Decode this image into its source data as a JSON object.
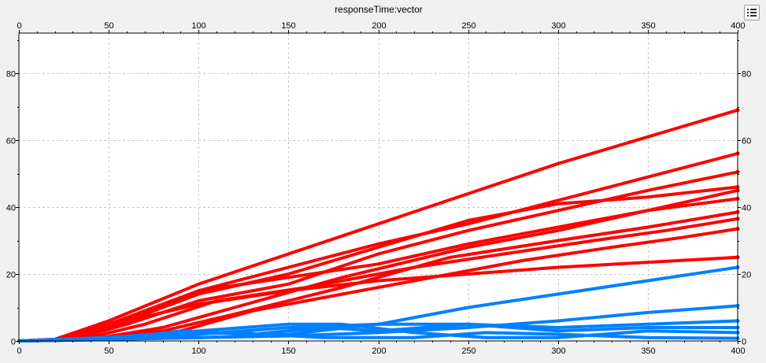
{
  "chart_data": {
    "type": "line",
    "title": "responseTime:vector",
    "xlabel": "",
    "ylabel": "",
    "xlim": [
      0,
      400
    ],
    "ylim": [
      0,
      92
    ],
    "x_ticks": [
      0,
      50,
      100,
      150,
      200,
      250,
      300,
      350,
      400
    ],
    "y_ticks": [
      0,
      20,
      40,
      60,
      80
    ],
    "grid": true,
    "legend": "none",
    "series": [
      {
        "color": "#ff0000",
        "points": [
          [
            0,
            0
          ],
          [
            20,
            0.5
          ],
          [
            50,
            6
          ],
          [
            100,
            17
          ],
          [
            150,
            26
          ],
          [
            200,
            35
          ],
          [
            250,
            44
          ],
          [
            300,
            53
          ],
          [
            350,
            61
          ],
          [
            400,
            69
          ]
        ]
      },
      {
        "color": "#ff0000",
        "points": [
          [
            0,
            0
          ],
          [
            20,
            0.5
          ],
          [
            50,
            5
          ],
          [
            100,
            15
          ],
          [
            150,
            22
          ],
          [
            200,
            29
          ],
          [
            250,
            35
          ],
          [
            300,
            42
          ],
          [
            350,
            49
          ],
          [
            400,
            56
          ]
        ]
      },
      {
        "color": "#ff0000",
        "points": [
          [
            0,
            0
          ],
          [
            30,
            0.5
          ],
          [
            60,
            5
          ],
          [
            100,
            12
          ],
          [
            150,
            17
          ],
          [
            200,
            26
          ],
          [
            250,
            33
          ],
          [
            300,
            39
          ],
          [
            350,
            45
          ],
          [
            400,
            50.5
          ]
        ]
      },
      {
        "color": "#ff0000",
        "points": [
          [
            0,
            0
          ],
          [
            25,
            0.5
          ],
          [
            50,
            4
          ],
          [
            100,
            14
          ],
          [
            150,
            20
          ],
          [
            200,
            28
          ],
          [
            250,
            36
          ],
          [
            300,
            41
          ],
          [
            350,
            43
          ],
          [
            400,
            46
          ]
        ]
      },
      {
        "color": "#ff0000",
        "points": [
          [
            0,
            0
          ],
          [
            40,
            0.5
          ],
          [
            80,
            4
          ],
          [
            120,
            10
          ],
          [
            180,
            19
          ],
          [
            250,
            28
          ],
          [
            300,
            33
          ],
          [
            350,
            39
          ],
          [
            400,
            45
          ]
        ]
      },
      {
        "color": "#ff0000",
        "points": [
          [
            0,
            0
          ],
          [
            30,
            0.5
          ],
          [
            60,
            6
          ],
          [
            100,
            15
          ],
          [
            150,
            19
          ],
          [
            200,
            23
          ],
          [
            250,
            29
          ],
          [
            300,
            34
          ],
          [
            350,
            39
          ],
          [
            400,
            42.5
          ]
        ]
      },
      {
        "color": "#ff0000",
        "points": [
          [
            0,
            0
          ],
          [
            45,
            0.5
          ],
          [
            80,
            3
          ],
          [
            120,
            8
          ],
          [
            180,
            16
          ],
          [
            240,
            25
          ],
          [
            300,
            30
          ],
          [
            350,
            34
          ],
          [
            400,
            38.5
          ]
        ]
      },
      {
        "color": "#ff0000",
        "points": [
          [
            0,
            0
          ],
          [
            35,
            0.5
          ],
          [
            70,
            5
          ],
          [
            110,
            12
          ],
          [
            160,
            16
          ],
          [
            220,
            22
          ],
          [
            270,
            26
          ],
          [
            320,
            30
          ],
          [
            360,
            33
          ],
          [
            400,
            36.5
          ]
        ]
      },
      {
        "color": "#ff0000",
        "points": [
          [
            0,
            0
          ],
          [
            50,
            0.5
          ],
          [
            90,
            3
          ],
          [
            130,
            9
          ],
          [
            180,
            14
          ],
          [
            230,
            19
          ],
          [
            280,
            24
          ],
          [
            330,
            28
          ],
          [
            370,
            31
          ],
          [
            400,
            33.5
          ]
        ]
      },
      {
        "color": "#ff0000",
        "points": [
          [
            0,
            0
          ],
          [
            25,
            0.5
          ],
          [
            60,
            6
          ],
          [
            100,
            11
          ],
          [
            150,
            15
          ],
          [
            200,
            18
          ],
          [
            250,
            20
          ],
          [
            300,
            22
          ],
          [
            350,
            23.5
          ],
          [
            400,
            25
          ]
        ]
      },
      {
        "color": "#0080ff",
        "points": [
          [
            0,
            0
          ],
          [
            50,
            0.5
          ],
          [
            100,
            1
          ],
          [
            150,
            2
          ],
          [
            200,
            5
          ],
          [
            250,
            10
          ],
          [
            300,
            14
          ],
          [
            350,
            18
          ],
          [
            400,
            22
          ]
        ]
      },
      {
        "color": "#0080ff",
        "points": [
          [
            0,
            0
          ],
          [
            50,
            0.5
          ],
          [
            100,
            1
          ],
          [
            150,
            1.5
          ],
          [
            200,
            2.5
          ],
          [
            250,
            4
          ],
          [
            300,
            6
          ],
          [
            350,
            8.5
          ],
          [
            400,
            10.5
          ]
        ]
      },
      {
        "color": "#0080ff",
        "points": [
          [
            0,
            0
          ],
          [
            60,
            0.5
          ],
          [
            100,
            2
          ],
          [
            150,
            4
          ],
          [
            200,
            5
          ],
          [
            250,
            5
          ],
          [
            300,
            4
          ],
          [
            350,
            5
          ],
          [
            400,
            6
          ]
        ]
      },
      {
        "color": "#0080ff",
        "points": [
          [
            0,
            0
          ],
          [
            60,
            1
          ],
          [
            90,
            3
          ],
          [
            130,
            2
          ],
          [
            170,
            4
          ],
          [
            200,
            3
          ],
          [
            250,
            5
          ],
          [
            300,
            3
          ],
          [
            350,
            4
          ],
          [
            400,
            4
          ]
        ]
      },
      {
        "color": "#0080ff",
        "points": [
          [
            0,
            0
          ],
          [
            50,
            1
          ],
          [
            100,
            3
          ],
          [
            150,
            5
          ],
          [
            180,
            5
          ],
          [
            220,
            2.5
          ],
          [
            260,
            1
          ],
          [
            300,
            1
          ],
          [
            350,
            3
          ],
          [
            400,
            2.5
          ]
        ]
      },
      {
        "color": "#0080ff",
        "points": [
          [
            0,
            0
          ],
          [
            70,
            1.5
          ],
          [
            120,
            2.5
          ],
          [
            170,
            1
          ],
          [
            220,
            1
          ],
          [
            260,
            2.5
          ],
          [
            300,
            2
          ],
          [
            350,
            1
          ],
          [
            400,
            0.8
          ]
        ]
      }
    ]
  },
  "toolbar": {
    "icon": "legend-list-icon"
  }
}
